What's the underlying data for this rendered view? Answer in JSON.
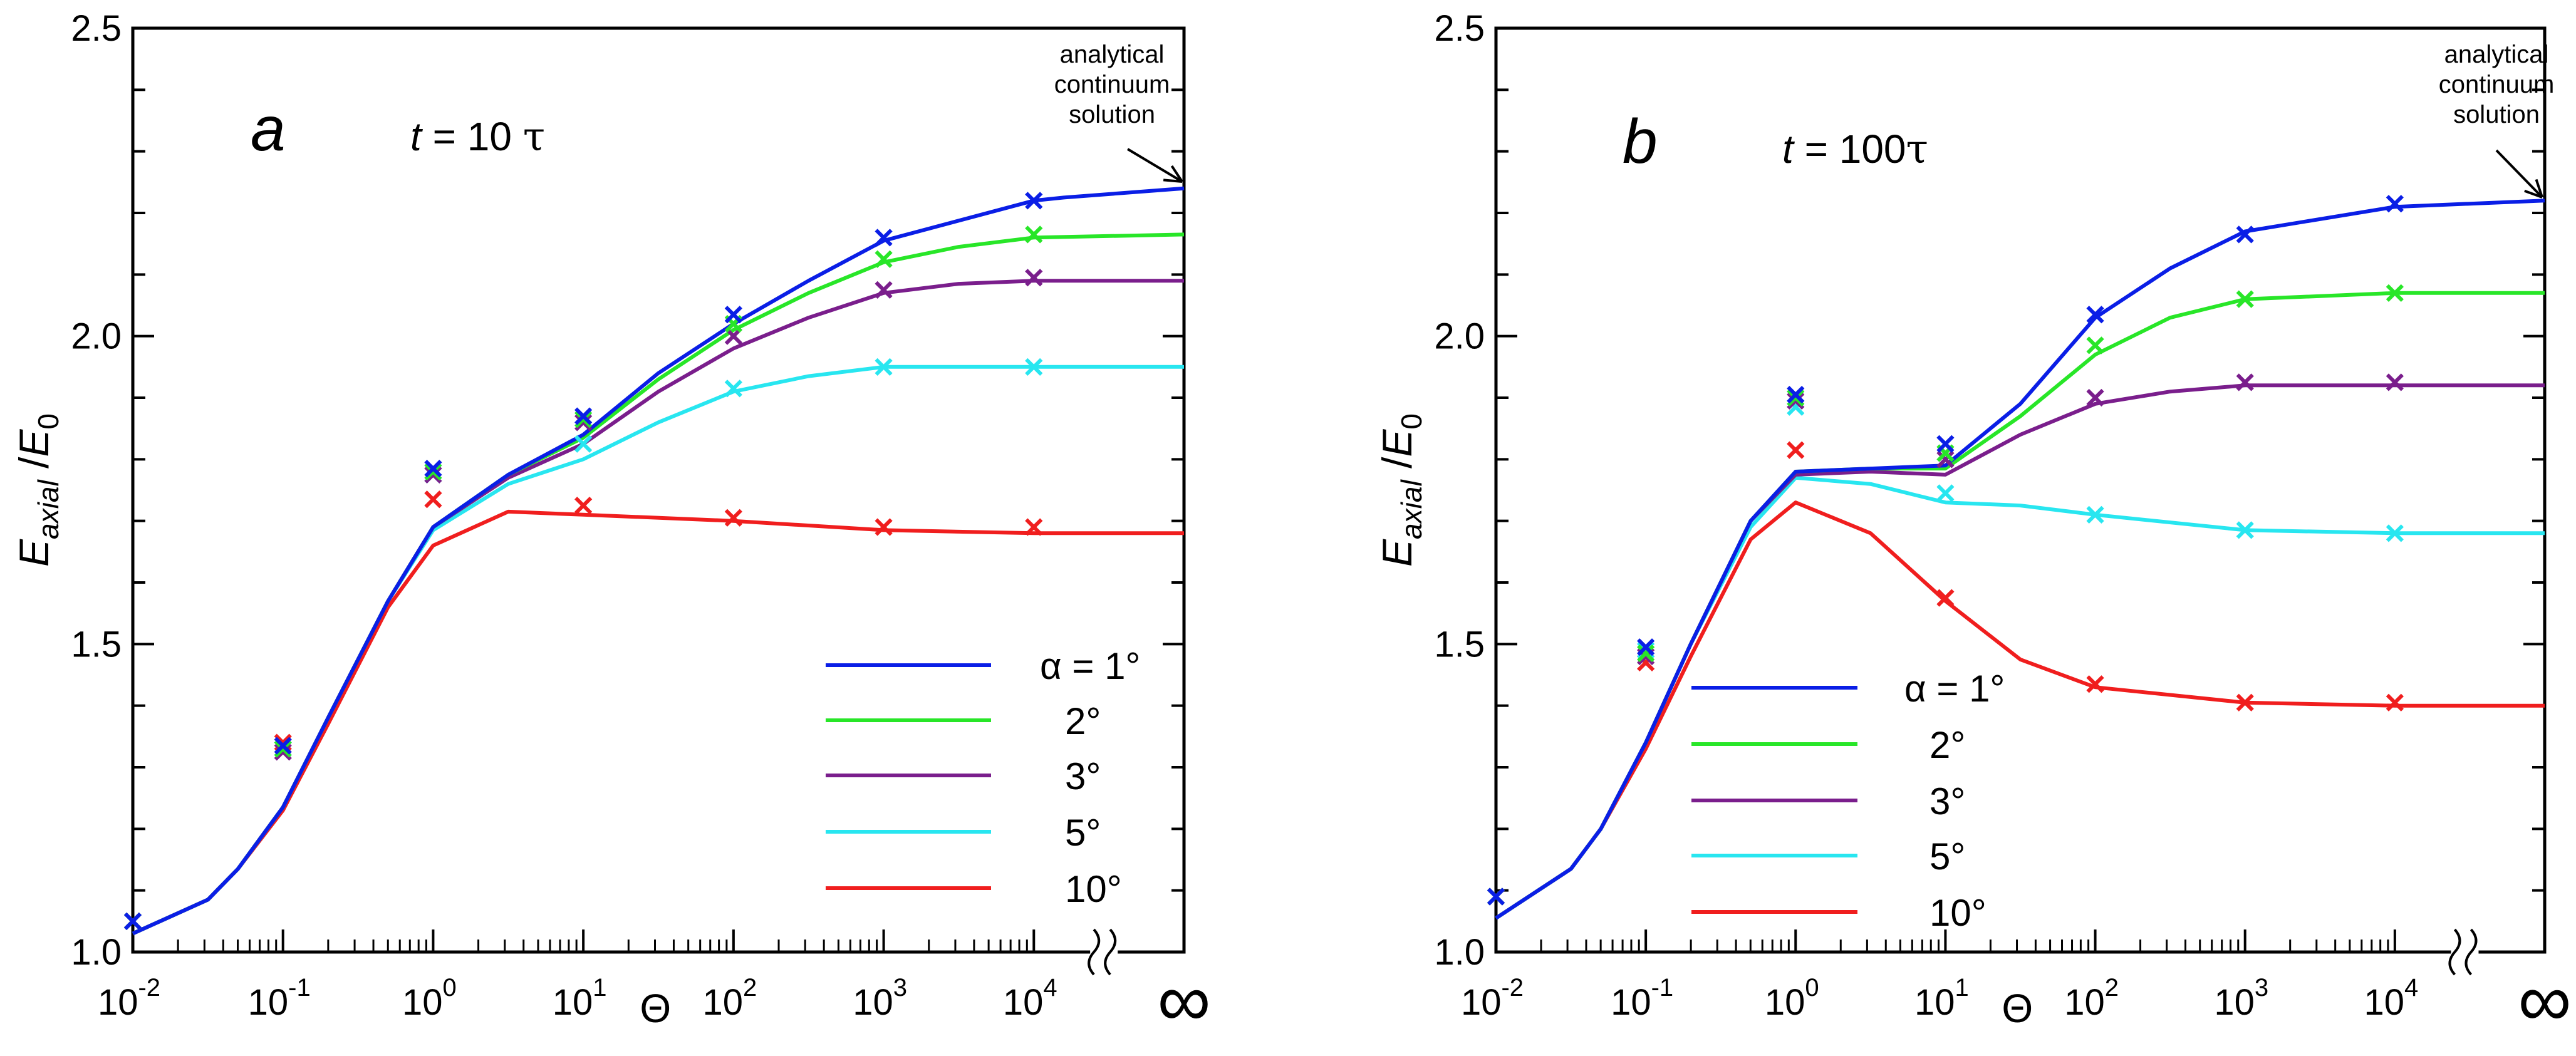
{
  "chart_data": [
    {
      "type": "line",
      "panel_label": "a",
      "time_label": {
        "var": "t",
        "eq": " = 10 ",
        "unit": "τ"
      },
      "ylabel": {
        "base": "E",
        "sub": "axial",
        "slash": " /",
        "denom": "E",
        "denom_sub": "0"
      },
      "xlabel": "Θ",
      "ylim": [
        1.0,
        2.5
      ],
      "y_ticks": [
        "1.0",
        "1.5",
        "2.0",
        "2.5"
      ],
      "x_ticks": [
        {
          "base": "10",
          "exp": "-2"
        },
        {
          "base": "10",
          "exp": "-1"
        },
        {
          "base": "10",
          "exp": "0"
        },
        {
          "base": "10",
          "exp": "1"
        },
        {
          "base": "10",
          "exp": "2"
        },
        {
          "base": "10",
          "exp": "3"
        },
        {
          "base": "10",
          "exp": "4"
        },
        {
          "base": "∞",
          "exp": ""
        }
      ],
      "annotation": [
        "analytical",
        "continuum",
        "solution"
      ],
      "legend": {
        "alpha_prefix": "α = ",
        "entries": [
          "1°",
          "2°",
          "3°",
          "5°",
          "10°"
        ]
      },
      "series": [
        {
          "name": "1°",
          "color": "#0a1ee6",
          "line": [
            [
              -2,
              1.03
            ],
            [
              -1.5,
              1.085
            ],
            [
              -1.3,
              1.135
            ],
            [
              -1,
              1.235
            ],
            [
              -0.7,
              1.38
            ],
            [
              -0.3,
              1.57
            ],
            [
              0,
              1.69
            ],
            [
              0.5,
              1.775
            ],
            [
              1,
              1.84
            ],
            [
              1.5,
              1.94
            ],
            [
              2,
              2.02
            ],
            [
              2.5,
              2.09
            ],
            [
              3,
              2.155
            ],
            [
              4,
              2.22
            ],
            [
              4.2,
              2.225
            ],
            [
              5,
              2.24
            ]
          ],
          "markers": [
            [
              -2,
              1.05
            ],
            [
              -1,
              1.335
            ],
            [
              0,
              1.785
            ],
            [
              1,
              1.87
            ],
            [
              2,
              2.035
            ],
            [
              3,
              2.16
            ],
            [
              4,
              2.22
            ]
          ]
        },
        {
          "name": "2°",
          "color": "#28e628",
          "line": [
            [
              -2,
              1.03
            ],
            [
              -1.5,
              1.085
            ],
            [
              -1.3,
              1.135
            ],
            [
              -1,
              1.235
            ],
            [
              -0.7,
              1.38
            ],
            [
              -0.3,
              1.57
            ],
            [
              0,
              1.69
            ],
            [
              0.5,
              1.775
            ],
            [
              1,
              1.835
            ],
            [
              1.5,
              1.93
            ],
            [
              2,
              2.01
            ],
            [
              2.5,
              2.07
            ],
            [
              3,
              2.12
            ],
            [
              3.5,
              2.145
            ],
            [
              4,
              2.16
            ],
            [
              5,
              2.165
            ]
          ],
          "markers": [
            [
              -2,
              1.05
            ],
            [
              -1,
              1.33
            ],
            [
              0,
              1.78
            ],
            [
              1,
              1.865
            ],
            [
              2,
              2.02
            ],
            [
              3,
              2.125
            ],
            [
              4,
              2.165
            ]
          ]
        },
        {
          "name": "3°",
          "color": "#7a1e8c",
          "line": [
            [
              -2,
              1.03
            ],
            [
              -1.5,
              1.085
            ],
            [
              -1.3,
              1.135
            ],
            [
              -1,
              1.235
            ],
            [
              -0.7,
              1.38
            ],
            [
              -0.3,
              1.57
            ],
            [
              0,
              1.69
            ],
            [
              0.5,
              1.77
            ],
            [
              1,
              1.825
            ],
            [
              1.5,
              1.91
            ],
            [
              2,
              1.98
            ],
            [
              2.5,
              2.03
            ],
            [
              3,
              2.07
            ],
            [
              3.5,
              2.085
            ],
            [
              4,
              2.09
            ],
            [
              5,
              2.09
            ]
          ],
          "markers": [
            [
              -2,
              1.05
            ],
            [
              -1,
              1.325
            ],
            [
              0,
              1.775
            ],
            [
              1,
              1.86
            ],
            [
              2,
              2.0
            ],
            [
              3,
              2.075
            ],
            [
              4,
              2.095
            ]
          ]
        },
        {
          "name": "5°",
          "color": "#28e6f0",
          "line": [
            [
              -2,
              1.03
            ],
            [
              -1.5,
              1.085
            ],
            [
              -1.3,
              1.135
            ],
            [
              -1,
              1.235
            ],
            [
              -0.7,
              1.38
            ],
            [
              -0.3,
              1.57
            ],
            [
              0,
              1.685
            ],
            [
              0.5,
              1.76
            ],
            [
              1,
              1.8
            ],
            [
              1.5,
              1.86
            ],
            [
              2,
              1.91
            ],
            [
              2.5,
              1.935
            ],
            [
              3,
              1.95
            ],
            [
              4,
              1.95
            ],
            [
              5,
              1.95
            ]
          ],
          "markers": [
            [
              -2,
              1.05
            ],
            [
              -1,
              1.33
            ],
            [
              0,
              1.775
            ],
            [
              1,
              1.825
            ],
            [
              2,
              1.915
            ],
            [
              3,
              1.95
            ],
            [
              4,
              1.95
            ]
          ]
        },
        {
          "name": "10°",
          "color": "#f01e1e",
          "line": [
            [
              -2,
              1.03
            ],
            [
              -1.5,
              1.085
            ],
            [
              -1.3,
              1.135
            ],
            [
              -1,
              1.23
            ],
            [
              -0.7,
              1.37
            ],
            [
              -0.3,
              1.56
            ],
            [
              0,
              1.66
            ],
            [
              0.5,
              1.715
            ],
            [
              1,
              1.71
            ],
            [
              2,
              1.7
            ],
            [
              3,
              1.685
            ],
            [
              4,
              1.68
            ],
            [
              5,
              1.68
            ]
          ],
          "markers": [
            [
              -2,
              1.05
            ],
            [
              -1,
              1.34
            ],
            [
              0,
              1.735
            ],
            [
              1,
              1.725
            ],
            [
              2,
              1.705
            ],
            [
              3,
              1.69
            ],
            [
              4,
              1.69
            ]
          ]
        }
      ]
    },
    {
      "type": "line",
      "panel_label": "b",
      "time_label": {
        "var": "t",
        "eq": " = 100",
        "unit": "τ"
      },
      "ylabel": {
        "base": "E",
        "sub": "axial",
        "slash": " /",
        "denom": "E",
        "denom_sub": "0"
      },
      "xlabel": "Θ",
      "ylim": [
        1.0,
        2.5
      ],
      "y_ticks": [
        "1.0",
        "1.5",
        "2.0",
        "2.5"
      ],
      "x_ticks": [
        {
          "base": "10",
          "exp": "-2"
        },
        {
          "base": "10",
          "exp": "-1"
        },
        {
          "base": "10",
          "exp": "0"
        },
        {
          "base": "10",
          "exp": "1"
        },
        {
          "base": "10",
          "exp": "2"
        },
        {
          "base": "10",
          "exp": "3"
        },
        {
          "base": "10",
          "exp": "4"
        },
        {
          "base": "∞",
          "exp": ""
        }
      ],
      "annotation": [
        "analytical",
        "continuum",
        "solution"
      ],
      "legend": {
        "alpha_prefix": "α = ",
        "entries": [
          "1°",
          "2°",
          "3°",
          "5°",
          "10°"
        ]
      },
      "series": [
        {
          "name": "1°",
          "color": "#0a1ee6",
          "line": [
            [
              -2,
              1.055
            ],
            [
              -1.5,
              1.135
            ],
            [
              -1.3,
              1.2
            ],
            [
              -1,
              1.34
            ],
            [
              -0.7,
              1.5
            ],
            [
              -0.3,
              1.7
            ],
            [
              0,
              1.78
            ],
            [
              0.5,
              1.785
            ],
            [
              1,
              1.79
            ],
            [
              1.5,
              1.89
            ],
            [
              2,
              2.03
            ],
            [
              2.5,
              2.11
            ],
            [
              3,
              2.17
            ],
            [
              4,
              2.21
            ],
            [
              5,
              2.22
            ]
          ],
          "markers": [
            [
              -2,
              1.09
            ],
            [
              -1,
              1.495
            ],
            [
              0,
              1.905
            ],
            [
              1,
              1.825
            ],
            [
              2,
              2.035
            ],
            [
              3,
              2.165
            ],
            [
              4,
              2.215
            ]
          ]
        },
        {
          "name": "2°",
          "color": "#28e628",
          "line": [
            [
              -2,
              1.055
            ],
            [
              -1.5,
              1.135
            ],
            [
              -1.3,
              1.2
            ],
            [
              -1,
              1.34
            ],
            [
              -0.7,
              1.5
            ],
            [
              -0.3,
              1.7
            ],
            [
              0,
              1.78
            ],
            [
              0.5,
              1.785
            ],
            [
              1,
              1.785
            ],
            [
              1.5,
              1.87
            ],
            [
              2,
              1.97
            ],
            [
              2.5,
              2.03
            ],
            [
              3,
              2.06
            ],
            [
              4,
              2.07
            ],
            [
              5,
              2.07
            ]
          ],
          "markers": [
            [
              -2,
              1.09
            ],
            [
              -1,
              1.485
            ],
            [
              0,
              1.9
            ],
            [
              1,
              1.81
            ],
            [
              2,
              1.985
            ],
            [
              3,
              2.06
            ],
            [
              4,
              2.07
            ]
          ]
        },
        {
          "name": "3°",
          "color": "#7a1e8c",
          "line": [
            [
              -2,
              1.055
            ],
            [
              -1.5,
              1.135
            ],
            [
              -1.3,
              1.2
            ],
            [
              -1,
              1.34
            ],
            [
              -0.7,
              1.5
            ],
            [
              -0.3,
              1.7
            ],
            [
              0,
              1.775
            ],
            [
              0.5,
              1.78
            ],
            [
              1,
              1.775
            ],
            [
              1.5,
              1.84
            ],
            [
              2,
              1.89
            ],
            [
              2.5,
              1.91
            ],
            [
              3,
              1.92
            ],
            [
              4,
              1.92
            ],
            [
              5,
              1.92
            ]
          ],
          "markers": [
            [
              -2,
              1.09
            ],
            [
              -1,
              1.48
            ],
            [
              0,
              1.895
            ],
            [
              1,
              1.8
            ],
            [
              2,
              1.9
            ],
            [
              3,
              1.925
            ],
            [
              4,
              1.925
            ]
          ]
        },
        {
          "name": "5°",
          "color": "#28e6f0",
          "line": [
            [
              -2,
              1.055
            ],
            [
              -1.5,
              1.135
            ],
            [
              -1.3,
              1.2
            ],
            [
              -1,
              1.34
            ],
            [
              -0.7,
              1.5
            ],
            [
              -0.3,
              1.69
            ],
            [
              0,
              1.77
            ],
            [
              0.5,
              1.76
            ],
            [
              1,
              1.73
            ],
            [
              1.5,
              1.725
            ],
            [
              2,
              1.71
            ],
            [
              3,
              1.685
            ],
            [
              4,
              1.68
            ],
            [
              5,
              1.68
            ]
          ],
          "markers": [
            [
              -2,
              1.09
            ],
            [
              -1,
              1.49
            ],
            [
              0,
              1.885
            ],
            [
              1,
              1.745
            ],
            [
              2,
              1.71
            ],
            [
              3,
              1.685
            ],
            [
              4,
              1.68
            ]
          ]
        },
        {
          "name": "10°",
          "color": "#f01e1e",
          "line": [
            [
              -2,
              1.055
            ],
            [
              -1.5,
              1.135
            ],
            [
              -1.3,
              1.2
            ],
            [
              -1,
              1.33
            ],
            [
              -0.7,
              1.48
            ],
            [
              -0.3,
              1.67
            ],
            [
              0,
              1.73
            ],
            [
              0.5,
              1.68
            ],
            [
              1,
              1.57
            ],
            [
              1.5,
              1.475
            ],
            [
              2,
              1.43
            ],
            [
              3,
              1.405
            ],
            [
              4,
              1.4
            ],
            [
              5,
              1.4
            ]
          ],
          "markers": [
            [
              -2,
              1.09
            ],
            [
              -1,
              1.47
            ],
            [
              0,
              1.815
            ],
            [
              1,
              1.575
            ],
            [
              2,
              1.435
            ],
            [
              3,
              1.405
            ],
            [
              4,
              1.405
            ]
          ]
        }
      ]
    }
  ]
}
